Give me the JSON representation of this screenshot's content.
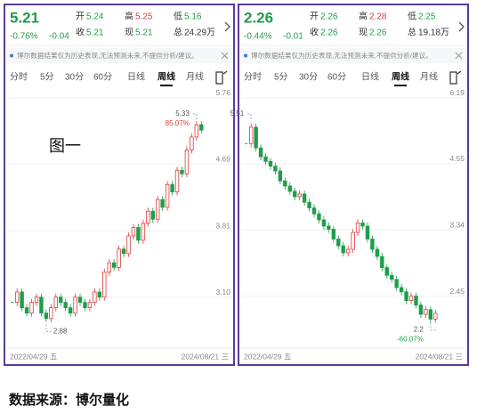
{
  "panels": [
    {
      "price": "5.21",
      "change_pct": "-0.76%",
      "change": "-0.04",
      "quote": [
        [
          "开",
          "5.24"
        ],
        [
          "高",
          "5.25"
        ],
        [
          "低",
          "5.16"
        ],
        [
          "收",
          "5.21"
        ],
        [
          "现",
          "5.21"
        ],
        [
          "总",
          "24.29万"
        ]
      ],
      "notice": "博尔数据结果仅为历史表现,无法预测未来,不提供分析/建议。",
      "tabs": [
        "分时",
        "5分",
        "30分",
        "60分",
        "日线",
        "周线",
        "月线"
      ],
      "active_tab": 5,
      "label": "图一",
      "chart": {
        "type": "candlestick",
        "log_scale": true,
        "ylim": [
          2.69,
          5.84
        ],
        "yticks": [
          5.76,
          4.69,
          3.81,
          {
            "value": 3.1,
            "label": "3.10"
          }
        ],
        "closes": [
          3.05,
          3.15,
          3.0,
          2.95,
          3.05,
          3.1,
          2.95,
          2.9,
          3.0,
          3.1,
          3.05,
          3.0,
          2.95,
          3.1,
          3.05,
          3.0,
          3.05,
          3.15,
          3.1,
          3.35,
          3.45,
          3.4,
          3.6,
          3.55,
          3.75,
          3.85,
          3.7,
          3.9,
          4.05,
          3.95,
          4.2,
          4.1,
          4.4,
          4.3,
          4.6,
          4.55,
          4.9,
          5.1,
          5.3,
          5.21
        ],
        "high_label": 5.33,
        "high_change": "85.07%",
        "low_label": 2.88,
        "x_start": "2022/04/29 五",
        "x_end": "2024/08/21 三"
      }
    },
    {
      "price": "2.26",
      "change_pct": "-0.44%",
      "change": "-0.01",
      "quote": [
        [
          "开",
          "2.26"
        ],
        [
          "高",
          "2.28"
        ],
        [
          "低",
          "2.25"
        ],
        [
          "收",
          "2.26"
        ],
        [
          "现",
          "2.26"
        ],
        [
          "总",
          "19.18万"
        ]
      ],
      "notice": "博尔数据结果仅为历史表现,无法预测未来,不提供分析/建议。",
      "tabs": [
        "分时",
        "5分",
        "30分",
        "60分",
        "日线",
        "周线",
        "月线"
      ],
      "active_tab": 5,
      "chart": {
        "type": "candlestick",
        "log_scale": true,
        "ylim": [
          1.97,
          6.32
        ],
        "yticks": [
          6.19,
          4.55,
          3.34,
          2.45
        ],
        "closes": [
          5.0,
          5.4,
          4.9,
          4.7,
          4.6,
          4.5,
          4.4,
          4.2,
          4.1,
          4.0,
          3.9,
          3.95,
          3.8,
          3.7,
          3.6,
          3.5,
          3.4,
          3.35,
          3.2,
          3.1,
          3.0,
          3.05,
          3.3,
          3.45,
          3.4,
          3.2,
          3.05,
          2.95,
          2.8,
          2.7,
          2.65,
          2.55,
          2.5,
          2.4,
          2.45,
          2.35,
          2.25,
          2.3,
          2.2,
          2.26
        ],
        "high_label": 5.51,
        "low_label": 2.2,
        "low_change": "-60.07%",
        "x_start": "2022/04/29 五",
        "x_end": "2024/08/21 三"
      }
    }
  ],
  "caption": "数据来源：博尔量化"
}
